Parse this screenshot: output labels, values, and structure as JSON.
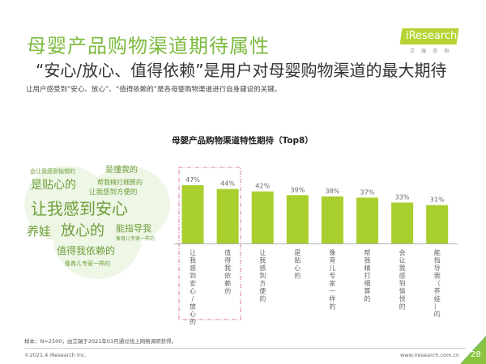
{
  "header": {
    "title": "母婴产品购物渠道期待属性",
    "subtitle": "“安心/放心、值得依赖”是用户对母婴购物渠道的最大期待",
    "description": "让用户感受到“安心、放心”、“值得依赖的”是各母婴购物渠道进行自身建设的关键。"
  },
  "logo": {
    "text": "iResearch",
    "sub": "艾瑞咨询"
  },
  "word_cloud": [
    "让我感到安心",
    "放心的",
    "是贴心的",
    "值得我依赖的",
    "养娃",
    "能指导我",
    "是懂我的",
    "帮我精打细算的",
    "让我感到方便的",
    "像育儿专家一样的",
    "会让我感到愉悦的"
  ],
  "chart_data": {
    "type": "bar",
    "title": "母婴产品购物渠道特性期待（Top8）",
    "categories": [
      "让我感到安心/放心的",
      "值得我依赖的",
      "让我感到方便的",
      "是贴心的",
      "像育儿专家一样的",
      "帮我精打细算的",
      "会让我感到愉悦的",
      "能指导我（养娃）的"
    ],
    "values": [
      47,
      44,
      42,
      39,
      38,
      37,
      33,
      31
    ],
    "value_labels": [
      "47%",
      "44%",
      "42%",
      "39%",
      "38%",
      "37%",
      "33%",
      "31%"
    ],
    "highlighted": [
      "让我感到安心/放心的",
      "值得我依赖的"
    ],
    "bar_color": "#a8cf2d",
    "highlight_box_color": "#e07aa8",
    "ylim": [
      0,
      50
    ]
  },
  "footer": {
    "note": "样本：N=2500；由艾瑞于2021年03月通过线上网络调研获得。",
    "copyright": "©2021.4 iResearch Inc.",
    "url": "www.iresearch.com.cn",
    "page": "28"
  }
}
